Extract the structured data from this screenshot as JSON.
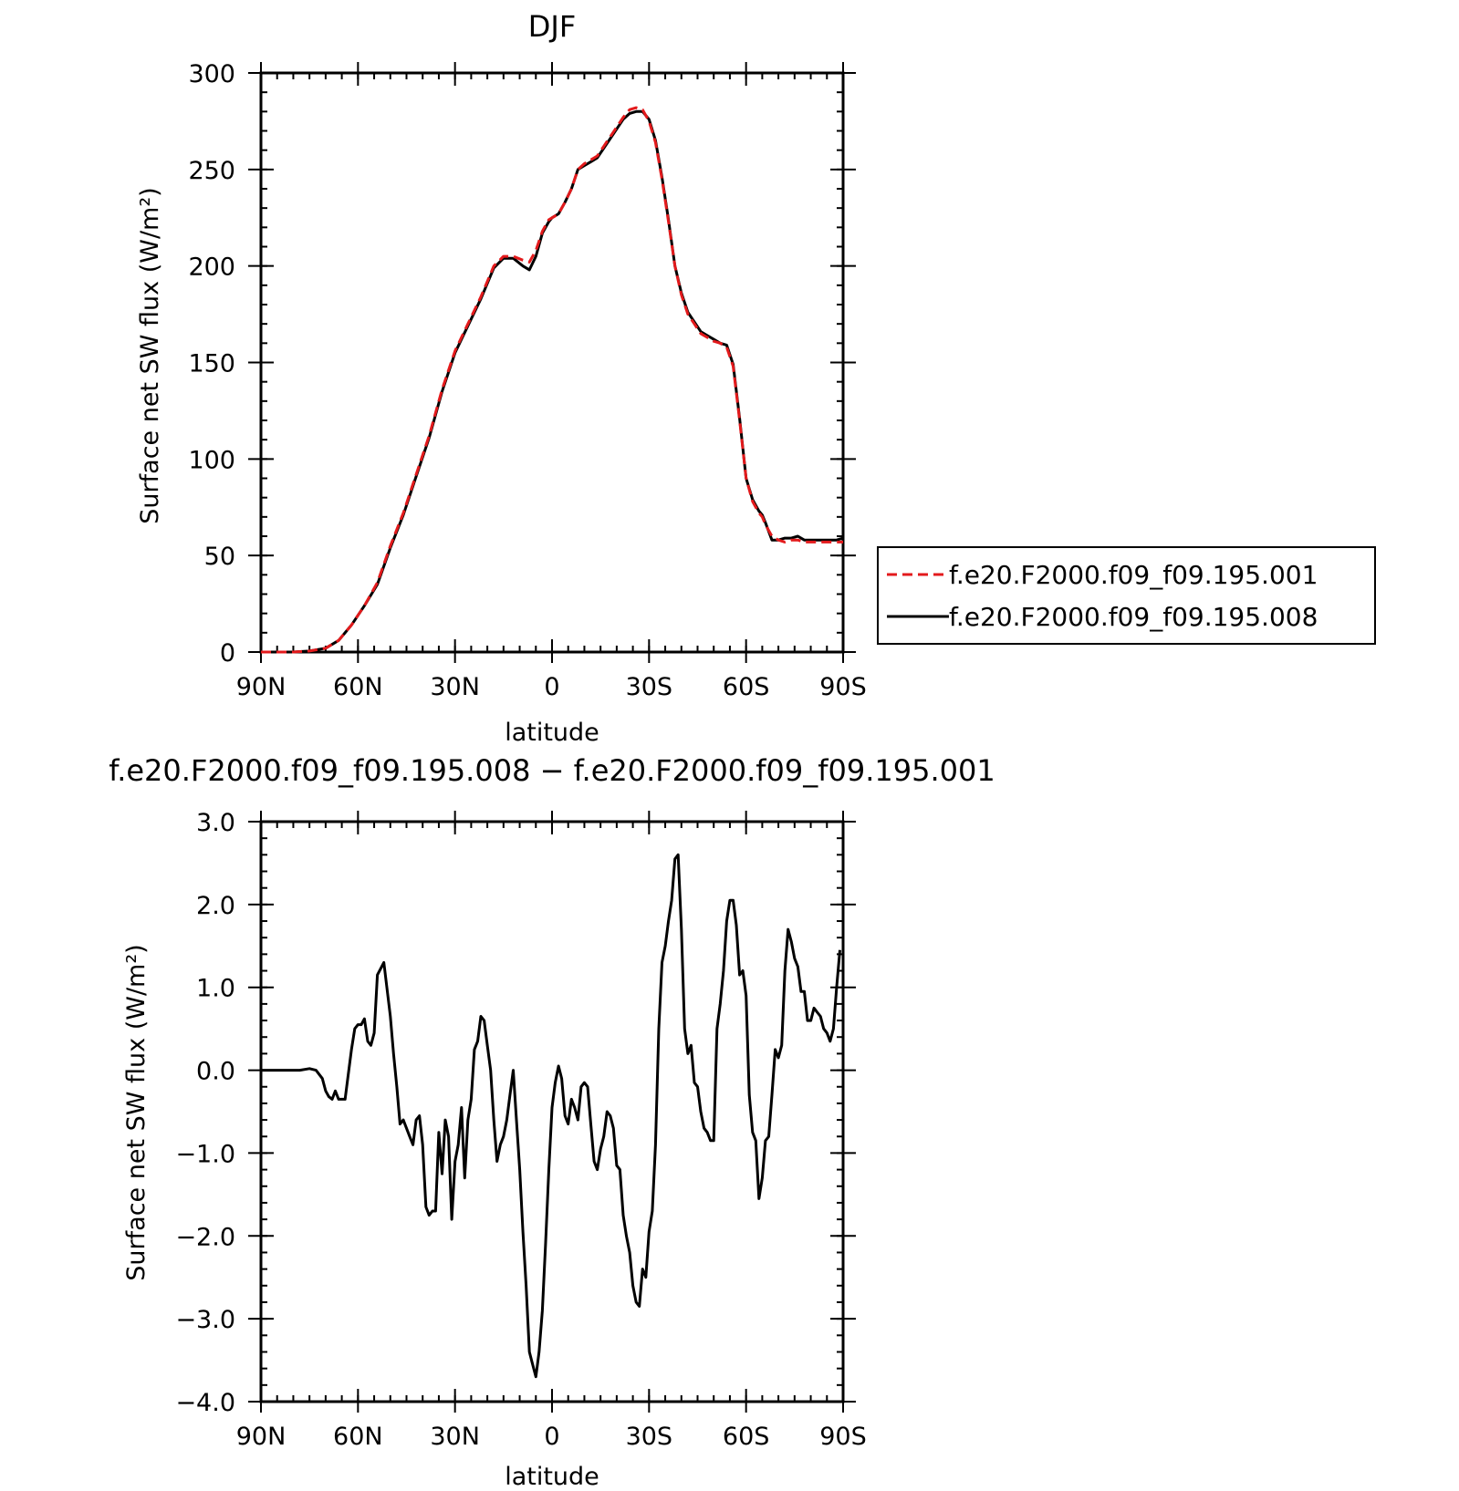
{
  "chart_data": [
    {
      "type": "line",
      "title": "DJF",
      "xlabel": "latitude",
      "ylabel": "Surface net SW flux (W/m²)",
      "xlim": [
        90,
        -90
      ],
      "ylim": [
        0,
        300
      ],
      "x_ticks": [
        90,
        60,
        30,
        0,
        -30,
        -60,
        -90
      ],
      "x_tick_labels": [
        "90N",
        "60N",
        "30N",
        "0",
        "30S",
        "60S",
        "90S"
      ],
      "y_ticks": [
        0,
        50,
        100,
        150,
        200,
        250,
        300
      ],
      "y_tick_labels": [
        "0",
        "50",
        "100",
        "150",
        "200",
        "250",
        "300"
      ],
      "legend_position": "right",
      "series": [
        {
          "name": "f.e20.F2000.f09_f09.195.001",
          "color": "#e31a1c",
          "dash": "dashed",
          "x": [
            90,
            80,
            75,
            70,
            66,
            62,
            58,
            54,
            50,
            46,
            42,
            38,
            34,
            30,
            26,
            22,
            18,
            15,
            12,
            9,
            7,
            5,
            3,
            1,
            0,
            -2,
            -4,
            -6,
            -8,
            -10,
            -12,
            -14,
            -16,
            -18,
            -20,
            -22,
            -24,
            -26,
            -28,
            -30,
            -32,
            -34,
            -36,
            -38,
            -40,
            -42,
            -44,
            -46,
            -48,
            -50,
            -52,
            -54,
            -56,
            -58,
            -60,
            -62,
            -64,
            -65,
            -66,
            -68,
            -70,
            -72,
            -74,
            -76,
            -78,
            -80,
            -82,
            -84,
            -86,
            -88,
            -90
          ],
          "y": [
            0,
            0,
            0.5,
            2,
            6,
            14,
            24,
            36,
            55,
            72,
            92,
            112,
            136,
            156,
            170,
            184,
            200,
            205,
            205,
            203,
            202,
            208,
            218,
            224,
            225,
            227,
            233,
            240,
            250,
            253,
            255,
            257,
            262,
            267,
            272,
            277,
            281,
            282,
            281,
            275,
            264,
            245,
            223,
            200,
            185,
            175,
            170,
            165,
            163,
            161,
            160,
            158,
            148,
            120,
            90,
            78,
            72,
            70,
            66,
            60,
            58,
            57,
            58,
            58,
            57,
            57,
            57,
            57,
            57,
            57,
            57
          ],
          "y_note": ""
        },
        {
          "name": "f.e20.F2000.f09_f09.195.008",
          "color": "#000000",
          "dash": "solid",
          "x": [
            90,
            80,
            75,
            70,
            66,
            62,
            58,
            54,
            50,
            46,
            42,
            38,
            34,
            30,
            26,
            22,
            18,
            15,
            12,
            9,
            7,
            5,
            3,
            1,
            0,
            -2,
            -4,
            -6,
            -8,
            -10,
            -12,
            -14,
            -16,
            -18,
            -20,
            -22,
            -24,
            -26,
            -28,
            -30,
            -32,
            -34,
            -36,
            -38,
            -40,
            -42,
            -44,
            -46,
            -48,
            -50,
            -52,
            -54,
            -56,
            -58,
            -60,
            -62,
            -64,
            -65,
            -66,
            -68,
            -70,
            -72,
            -74,
            -76,
            -78,
            -80,
            -82,
            -84,
            -86,
            -88,
            -90
          ],
          "y": [
            0,
            0,
            0.5,
            2,
            6,
            14,
            24,
            35,
            54,
            71,
            91,
            111,
            135,
            155,
            169,
            183,
            199,
            204,
            204,
            200,
            198,
            205,
            217,
            223,
            225,
            227,
            233,
            240,
            250,
            252,
            254,
            256,
            261,
            266,
            271,
            276,
            279,
            280,
            280,
            276,
            265,
            246,
            224,
            200,
            186,
            176,
            171,
            166,
            164,
            162,
            160,
            159,
            149,
            121,
            90,
            79,
            73,
            71,
            67,
            58,
            58,
            59,
            59,
            60,
            58,
            58,
            58,
            58,
            58,
            58,
            59
          ]
        }
      ]
    },
    {
      "type": "line",
      "title": "f.e20.F2000.f09_f09.195.008 − f.e20.F2000.f09_f09.195.001",
      "xlabel": "latitude",
      "ylabel": "Surface net SW flux (W/m²)",
      "xlim": [
        90,
        -90
      ],
      "ylim": [
        -4.0,
        3.0
      ],
      "x_ticks": [
        90,
        60,
        30,
        0,
        -30,
        -60,
        -90
      ],
      "x_tick_labels": [
        "90N",
        "60N",
        "30N",
        "0",
        "30S",
        "60S",
        "90S"
      ],
      "y_ticks": [
        3.0,
        2.0,
        1.0,
        0.0,
        -1.0,
        -2.0,
        -3.0,
        -4.0
      ],
      "y_tick_labels": [
        "3.0",
        "2.0",
        "1.0",
        "0.0",
        "−1.0",
        "−2.0",
        "−3.0",
        "−4.0"
      ],
      "series": [
        {
          "name": "",
          "color": "#000000",
          "dash": "solid",
          "x": [
            90,
            78,
            75,
            73,
            71,
            70,
            69,
            68,
            67,
            66,
            64,
            63,
            62,
            61,
            60,
            59,
            58,
            57,
            56,
            55,
            54,
            52,
            50,
            49,
            48,
            47,
            46,
            45,
            44,
            43,
            42,
            41,
            40,
            39,
            38,
            37,
            36,
            35,
            34,
            33,
            32,
            31,
            30,
            29,
            28,
            27,
            26,
            25,
            24,
            23,
            22,
            21,
            20,
            19,
            18,
            17,
            16,
            15,
            14,
            13,
            12,
            11,
            10,
            9,
            8,
            7,
            6,
            5,
            4,
            3,
            2,
            1,
            0,
            -1,
            -2,
            -3,
            -4,
            -5,
            -6,
            -7,
            -8,
            -9,
            -10,
            -11,
            -12,
            -13,
            -14,
            -15,
            -16,
            -17,
            -18,
            -19,
            -20,
            -21,
            -22,
            -23,
            -24,
            -25,
            -26,
            -27,
            -28,
            -29,
            -30,
            -31,
            -32,
            -33,
            -34,
            -35,
            -36,
            -37,
            -38,
            -39,
            -40,
            -41,
            -42,
            -43,
            -44,
            -45,
            -46,
            -47,
            -48,
            -49,
            -50,
            -51,
            -52,
            -53,
            -54,
            -55,
            -56,
            -57,
            -58,
            -59,
            -60,
            -61,
            -62,
            -63,
            -64,
            -65,
            -66,
            -67,
            -68,
            -69,
            -70,
            -71,
            -72,
            -73,
            -74,
            -75,
            -76,
            -77,
            -78,
            -79,
            -80,
            -81,
            -82,
            -83,
            -84,
            -85,
            -86,
            -87,
            -88,
            -89
          ],
          "y": [
            0,
            0,
            0.02,
            0,
            -0.1,
            -0.25,
            -0.32,
            -0.35,
            -0.25,
            -0.35,
            -0.35,
            -0.05,
            0.25,
            0.5,
            0.55,
            0.55,
            0.62,
            0.35,
            0.3,
            0.45,
            1.15,
            1.3,
            0.65,
            0.2,
            -0.2,
            -0.65,
            -0.6,
            -0.7,
            -0.8,
            -0.9,
            -0.6,
            -0.55,
            -0.9,
            -1.65,
            -1.75,
            -1.7,
            -1.7,
            -0.75,
            -1.25,
            -0.6,
            -0.8,
            -1.8,
            -1.1,
            -0.9,
            -0.45,
            -1.3,
            -0.6,
            -0.35,
            0.25,
            0.35,
            0.65,
            0.6,
            0.3,
            0.0,
            -0.6,
            -1.1,
            -0.9,
            -0.8,
            -0.6,
            -0.3,
            0.0,
            -0.6,
            -1.2,
            -1.95,
            -2.6,
            -3.4,
            -3.55,
            -3.7,
            -3.4,
            -2.9,
            -2.1,
            -1.2,
            -0.45,
            -0.15,
            0.05,
            -0.1,
            -0.55,
            -0.65,
            -0.35,
            -0.45,
            -0.6,
            -0.2,
            -0.15,
            -0.2,
            -0.65,
            -1.1,
            -1.2,
            -0.95,
            -0.8,
            -0.5,
            -0.55,
            -0.7,
            -1.15,
            -1.2,
            -1.75,
            -2.0,
            -2.2,
            -2.6,
            -2.8,
            -2.85,
            -2.4,
            -2.5,
            -1.95,
            -1.7,
            -0.9,
            0.5,
            1.3,
            1.5,
            1.8,
            2.05,
            2.55,
            2.6,
            1.7,
            0.5,
            0.2,
            0.3,
            -0.15,
            -0.2,
            -0.5,
            -0.7,
            -0.75,
            -0.85,
            -0.85,
            0.5,
            0.8,
            1.2,
            1.8,
            2.05,
            2.05,
            1.75,
            1.15,
            1.2,
            0.9,
            -0.3,
            -0.75,
            -0.85,
            -1.55,
            -1.3,
            -0.85,
            -0.8,
            -0.3,
            0.25,
            0.15,
            0.3,
            1.2,
            1.7,
            1.55,
            1.35,
            1.25,
            0.95,
            0.95,
            0.6,
            0.6,
            0.75,
            0.7,
            0.65,
            0.5,
            0.45,
            0.35,
            0.5,
            1.0,
            1.45
          ]
        }
      ]
    }
  ]
}
